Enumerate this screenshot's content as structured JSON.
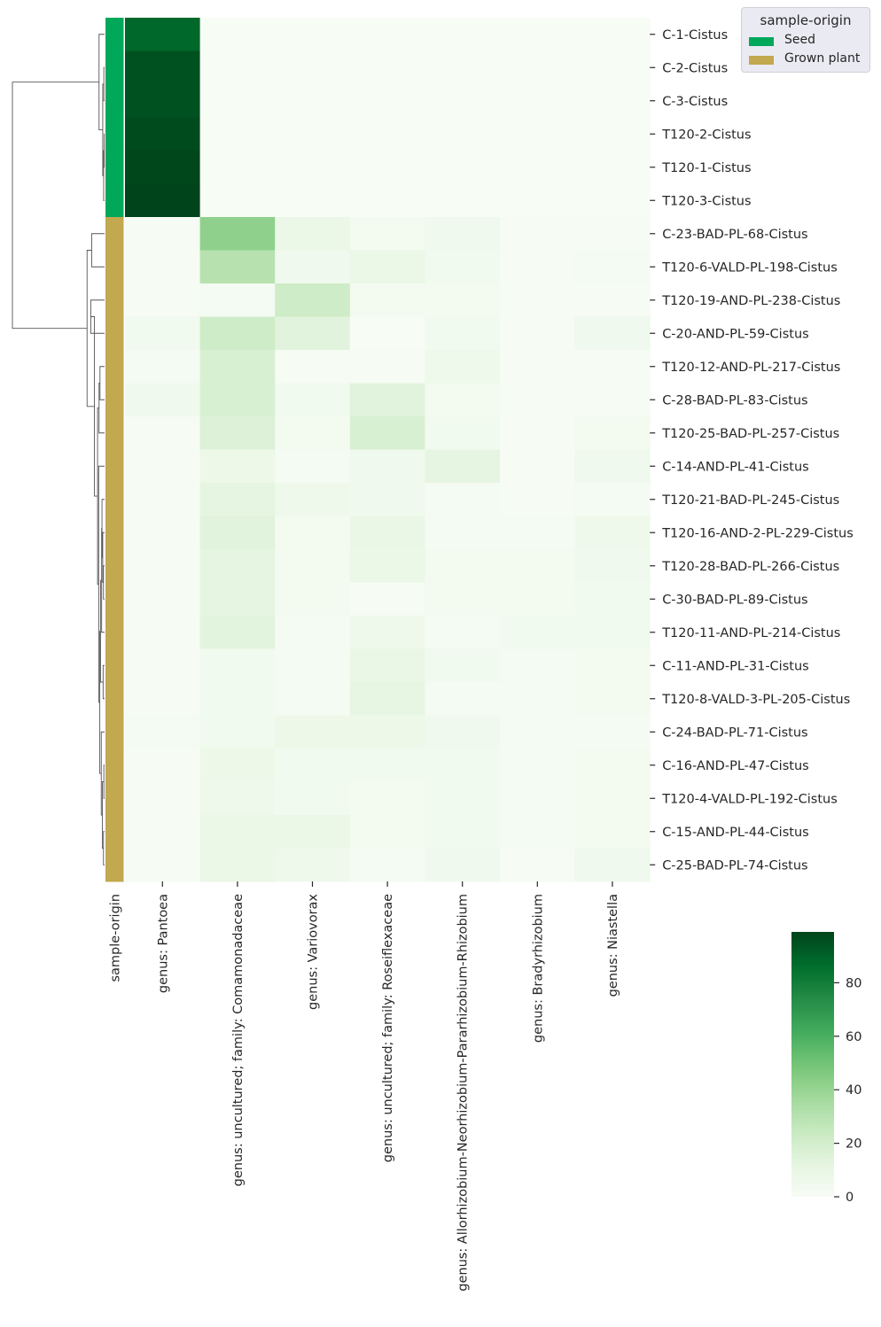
{
  "chart_data": {
    "type": "heatmap",
    "title": "",
    "rows": [
      "C-1-Cistus",
      "C-2-Cistus",
      "C-3-Cistus",
      "T120-2-Cistus",
      "T120-1-Cistus",
      "T120-3-Cistus",
      "C-23-BAD-PL-68-Cistus",
      "T120-6-VALD-PL-198-Cistus",
      "T120-19-AND-PL-238-Cistus",
      "C-20-AND-PL-59-Cistus",
      "T120-12-AND-PL-217-Cistus",
      "C-28-BAD-PL-83-Cistus",
      "T120-25-BAD-PL-257-Cistus",
      "C-14-AND-PL-41-Cistus",
      "T120-21-BAD-PL-245-Cistus",
      "T120-16-AND-2-PL-229-Cistus",
      "T120-28-BAD-PL-266-Cistus",
      "C-30-BAD-PL-89-Cistus",
      "T120-11-AND-PL-214-Cistus",
      "C-11-AND-PL-31-Cistus",
      "T120-8-VALD-3-PL-205-Cistus",
      "C-24-BAD-PL-71-Cistus",
      "C-16-AND-PL-47-Cistus",
      "T120-4-VALD-PL-192-Cistus",
      "C-15-AND-PL-44-Cistus",
      "C-25-BAD-PL-74-Cistus"
    ],
    "columns": [
      "genus: Pantoea",
      "genus: uncultured; family: Comamonadaceae",
      "genus: Variovorax",
      "genus: uncultured; family: Roseiflexaceae",
      "genus: Allorhizobium-Neorhizobium-Pararhizobium-Rhizobium",
      "genus: Bradyrhizobium",
      "genus: Niastella"
    ],
    "values": [
      [
        88,
        0,
        0,
        0,
        0,
        0,
        0
      ],
      [
        95,
        0,
        0,
        0,
        0,
        0,
        0
      ],
      [
        95,
        0,
        0,
        0,
        0,
        0,
        0
      ],
      [
        97,
        0,
        0,
        0,
        0,
        0,
        0
      ],
      [
        98,
        0,
        0,
        0,
        0,
        0,
        0
      ],
      [
        99,
        0,
        0,
        0,
        0,
        0,
        0
      ],
      [
        1,
        42,
        8,
        3,
        5,
        1,
        1
      ],
      [
        1,
        30,
        5,
        8,
        4,
        1,
        2
      ],
      [
        1,
        2,
        22,
        3,
        3,
        1,
        1
      ],
      [
        4,
        22,
        14,
        0,
        4,
        1,
        5
      ],
      [
        2,
        18,
        1,
        1,
        6,
        1,
        1
      ],
      [
        5,
        18,
        4,
        14,
        3,
        1,
        1
      ],
      [
        1,
        16,
        3,
        18,
        4,
        1,
        3
      ],
      [
        1,
        7,
        2,
        5,
        12,
        1,
        5
      ],
      [
        1,
        12,
        6,
        5,
        2,
        1,
        2
      ],
      [
        1,
        14,
        3,
        9,
        2,
        2,
        6
      ],
      [
        1,
        12,
        3,
        8,
        3,
        3,
        5
      ],
      [
        1,
        12,
        3,
        1,
        3,
        3,
        4
      ],
      [
        1,
        13,
        2,
        6,
        2,
        4,
        4
      ],
      [
        1,
        4,
        2,
        9,
        4,
        2,
        3
      ],
      [
        1,
        4,
        2,
        11,
        2,
        2,
        3
      ],
      [
        2,
        4,
        7,
        7,
        5,
        2,
        2
      ],
      [
        1,
        7,
        4,
        4,
        4,
        2,
        3
      ],
      [
        1,
        6,
        4,
        3,
        4,
        2,
        3
      ],
      [
        1,
        8,
        8,
        3,
        4,
        2,
        3
      ],
      [
        1,
        8,
        6,
        2,
        5,
        1,
        5
      ]
    ],
    "row_colors_label": "sample-origin",
    "row_groups": [
      "Seed",
      "Seed",
      "Seed",
      "Seed",
      "Seed",
      "Seed",
      "Grown plant",
      "Grown plant",
      "Grown plant",
      "Grown plant",
      "Grown plant",
      "Grown plant",
      "Grown plant",
      "Grown plant",
      "Grown plant",
      "Grown plant",
      "Grown plant",
      "Grown plant",
      "Grown plant",
      "Grown plant",
      "Grown plant",
      "Grown plant",
      "Grown plant",
      "Grown plant",
      "Grown plant",
      "Grown plant"
    ],
    "legend": {
      "title": "sample-origin",
      "placement": "top-right",
      "entries": [
        {
          "label": "Seed",
          "color": "#00a85a"
        },
        {
          "label": "Grown plant",
          "color": "#c2a84e"
        }
      ]
    },
    "colorbar": {
      "range": [
        0,
        99
      ],
      "ticks": [
        0,
        20,
        40,
        60,
        80
      ],
      "colormap": "Greens",
      "color_low": "#f7fcf5",
      "color_high": "#00441b"
    },
    "dendrogram": "rows"
  }
}
